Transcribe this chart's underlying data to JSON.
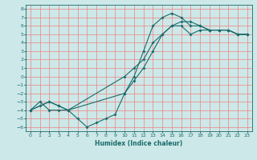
{
  "title": "",
  "xlabel": "Humidex (Indice chaleur)",
  "background_color": "#cde8e8",
  "grid_color": "#f08080",
  "line_color": "#1a6b6b",
  "xlim": [
    -0.5,
    23.5
  ],
  "ylim": [
    -6.5,
    8.5
  ],
  "xticks": [
    0,
    1,
    2,
    3,
    4,
    5,
    6,
    7,
    8,
    9,
    10,
    11,
    12,
    13,
    14,
    15,
    16,
    17,
    18,
    19,
    20,
    21,
    22,
    23
  ],
  "yticks": [
    -6,
    -5,
    -4,
    -3,
    -2,
    -1,
    0,
    1,
    2,
    3,
    4,
    5,
    6,
    7,
    8
  ],
  "line1_x": [
    0,
    1,
    2,
    3,
    4,
    5,
    6,
    7,
    8,
    9,
    10,
    11,
    12,
    13,
    14,
    15,
    16,
    17,
    18,
    19,
    20,
    21,
    22,
    23
  ],
  "line1_y": [
    -4,
    -3,
    -4,
    -4,
    -4,
    -5,
    -6,
    -5.5,
    -5,
    -4.5,
    -2,
    -0.5,
    1,
    3,
    5,
    6,
    6,
    5,
    5.5,
    5.5,
    5.5,
    5.5,
    5,
    5
  ],
  "line2_x": [
    0,
    1,
    2,
    3,
    4,
    10,
    11,
    12,
    13,
    14,
    15,
    16,
    17,
    18,
    19,
    20,
    21,
    22,
    23
  ],
  "line2_y": [
    -4,
    -3.5,
    -3,
    -3.5,
    -4,
    -2,
    0,
    3,
    6,
    7,
    7.5,
    7,
    6,
    6,
    5.5,
    5.5,
    5.5,
    5,
    5
  ],
  "line3_x": [
    0,
    2,
    3,
    4,
    10,
    11,
    12,
    13,
    14,
    15,
    16,
    17,
    18,
    19,
    20,
    21,
    22,
    23
  ],
  "line3_y": [
    -4,
    -3,
    -3.5,
    -4,
    0,
    1,
    2,
    4,
    5,
    6,
    6.5,
    6.5,
    6,
    5.5,
    5.5,
    5.5,
    5,
    5
  ]
}
